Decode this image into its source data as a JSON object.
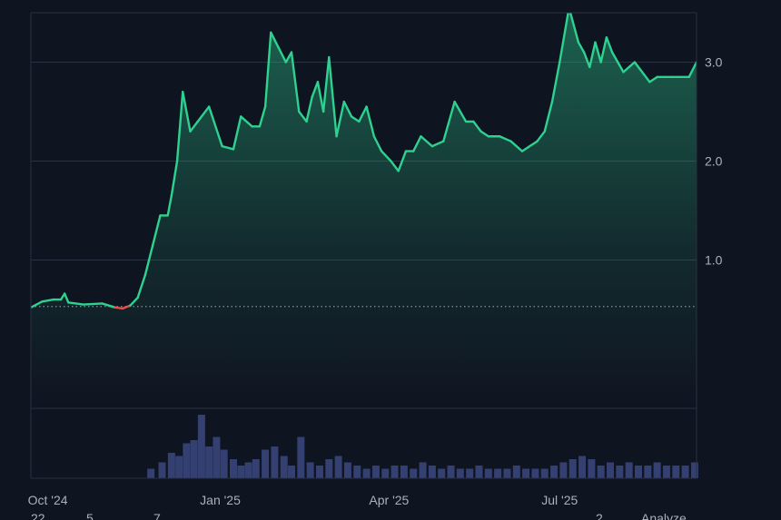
{
  "chart_data": {
    "type": "area",
    "title": "",
    "xlabel": "",
    "ylabel": "",
    "x_ticks": [
      "Oct '24",
      "Jan '25",
      "Apr '25",
      "Jul '25"
    ],
    "y_ticks": [
      "1.0",
      "2.0",
      "3.0"
    ],
    "ylim": [
      -0.5,
      3.5
    ],
    "xlim": [
      "2024-09-22",
      "2025-09-12"
    ],
    "baseline_value": 0.53,
    "grid": true,
    "colors": {
      "background": "#0f1421",
      "line_up": "#2ed18f",
      "line_down": "#e0524a",
      "grid": "#2a3142",
      "baseline": "#8a909c",
      "volume": "#39457a",
      "axis_text": "#aab0bd"
    },
    "series": [
      {
        "x": [
          "2024-09-22",
          "2024-09-28",
          "2024-10-04",
          "2024-10-08",
          "2024-10-10",
          "2024-10-12",
          "2024-10-20",
          "2024-10-30",
          "2024-11-06",
          "2024-11-10",
          "2024-11-14",
          "2024-11-18",
          "2024-11-22",
          "2024-11-26",
          "2024-11-30",
          "2024-12-04",
          "2024-12-06",
          "2024-12-09",
          "2024-12-12",
          "2024-12-16",
          "2024-12-20",
          "2024-12-26",
          "2025-01-02",
          "2025-01-08",
          "2025-01-12",
          "2025-01-18",
          "2025-01-22",
          "2025-01-25",
          "2025-01-28",
          "2025-02-01",
          "2025-02-05",
          "2025-02-08",
          "2025-02-12",
          "2025-02-16",
          "2025-02-19",
          "2025-02-22",
          "2025-02-25",
          "2025-02-28",
          "2025-03-04",
          "2025-03-08",
          "2025-03-12",
          "2025-03-16",
          "2025-03-20",
          "2025-03-24",
          "2025-03-28",
          "2025-04-02",
          "2025-04-06",
          "2025-04-10",
          "2025-04-14",
          "2025-04-18",
          "2025-04-24",
          "2025-04-30",
          "2025-05-06",
          "2025-05-12",
          "2025-05-16",
          "2025-05-20",
          "2025-05-24",
          "2025-05-30",
          "2025-06-05",
          "2025-06-11",
          "2025-06-15",
          "2025-06-19",
          "2025-06-23",
          "2025-06-27",
          "2025-07-01",
          "2025-07-06",
          "2025-07-11",
          "2025-07-14",
          "2025-07-17",
          "2025-07-20",
          "2025-07-23",
          "2025-07-26",
          "2025-07-29",
          "2025-08-01",
          "2025-08-04",
          "2025-08-07",
          "2025-08-10",
          "2025-08-14",
          "2025-08-18",
          "2025-08-22",
          "2025-08-26",
          "2025-08-30",
          "2025-09-03",
          "2025-09-08",
          "2025-09-12"
        ],
        "y": [
          0.52,
          0.58,
          0.6,
          0.6,
          0.66,
          0.57,
          0.55,
          0.56,
          0.52,
          0.51,
          0.54,
          0.62,
          0.85,
          1.15,
          1.45,
          1.45,
          1.65,
          2.0,
          2.7,
          2.3,
          2.4,
          2.55,
          2.15,
          2.12,
          2.45,
          2.35,
          2.35,
          2.55,
          3.3,
          3.15,
          3.0,
          3.1,
          2.5,
          2.4,
          2.65,
          2.8,
          2.5,
          3.05,
          2.25,
          2.6,
          2.45,
          2.4,
          2.55,
          2.25,
          2.1,
          2.0,
          1.9,
          2.1,
          2.1,
          2.25,
          2.15,
          2.2,
          2.6,
          2.4,
          2.4,
          2.3,
          2.25,
          2.25,
          2.2,
          2.1,
          2.15,
          2.2,
          2.3,
          2.6,
          3.0,
          3.55,
          3.2,
          3.1,
          2.95,
          3.2,
          3.0,
          3.25,
          3.1,
          3.0,
          2.9,
          2.95,
          3.0,
          2.9,
          2.8,
          2.85,
          2.85,
          2.85,
          2.85,
          2.85,
          3.0
        ]
      }
    ],
    "volume": {
      "x": [
        "2024-11-25",
        "2024-12-01",
        "2024-12-06",
        "2024-12-10",
        "2024-12-14",
        "2024-12-18",
        "2024-12-22",
        "2024-12-26",
        "2024-12-30",
        "2025-01-03",
        "2025-01-08",
        "2025-01-12",
        "2025-01-16",
        "2025-01-20",
        "2025-01-25",
        "2025-01-30",
        "2025-02-04",
        "2025-02-08",
        "2025-02-13",
        "2025-02-18",
        "2025-02-23",
        "2025-02-28",
        "2025-03-05",
        "2025-03-10",
        "2025-03-15",
        "2025-03-20",
        "2025-03-25",
        "2025-03-30",
        "2025-04-04",
        "2025-04-09",
        "2025-04-14",
        "2025-04-19",
        "2025-04-24",
        "2025-04-29",
        "2025-05-04",
        "2025-05-09",
        "2025-05-14",
        "2025-05-19",
        "2025-05-24",
        "2025-05-29",
        "2025-06-03",
        "2025-06-08",
        "2025-06-13",
        "2025-06-18",
        "2025-06-23",
        "2025-06-28",
        "2025-07-03",
        "2025-07-08",
        "2025-07-13",
        "2025-07-18",
        "2025-07-23",
        "2025-07-28",
        "2025-08-02",
        "2025-08-07",
        "2025-08-12",
        "2025-08-17",
        "2025-08-22",
        "2025-08-27",
        "2025-09-01",
        "2025-09-06",
        "2025-09-11"
      ],
      "y": [
        0.15,
        0.25,
        0.4,
        0.35,
        0.55,
        0.6,
        1.0,
        0.5,
        0.65,
        0.45,
        0.3,
        0.2,
        0.25,
        0.3,
        0.45,
        0.5,
        0.35,
        0.2,
        0.65,
        0.25,
        0.2,
        0.3,
        0.35,
        0.25,
        0.2,
        0.15,
        0.2,
        0.15,
        0.2,
        0.2,
        0.15,
        0.25,
        0.2,
        0.15,
        0.2,
        0.15,
        0.15,
        0.2,
        0.15,
        0.15,
        0.15,
        0.2,
        0.15,
        0.15,
        0.15,
        0.2,
        0.25,
        0.3,
        0.35,
        0.3,
        0.2,
        0.25,
        0.2,
        0.25,
        0.2,
        0.2,
        0.25,
        0.2,
        0.2,
        0.2,
        0.25
      ]
    }
  },
  "footer": {
    "partial_labels": [
      "22",
      "5",
      "7",
      "2",
      "Analyze"
    ]
  }
}
